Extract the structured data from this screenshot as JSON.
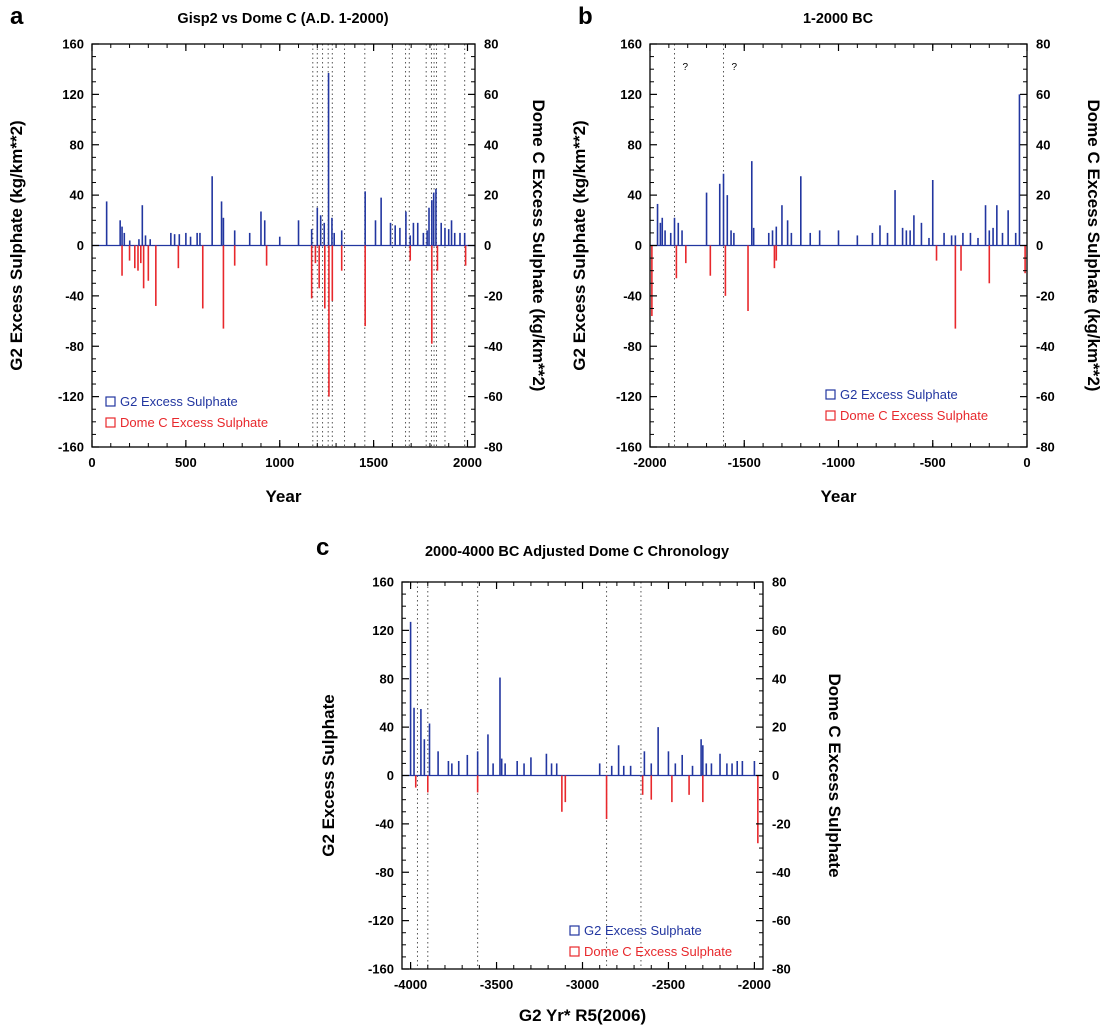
{
  "colors": {
    "g2": "#2236a0",
    "domec": "#e8282c",
    "axis": "#000000",
    "marker": "#555555"
  },
  "chart_data": [
    {
      "panel": "a",
      "type": "bar",
      "title": "Gisp2 vs Dome C (A.D. 1-2000)",
      "xlabel": "Year",
      "ylabel": "G2 Excess Sulphate (kg/km**2)",
      "ylabel_right": "Dome C Excess Sulphate (kg/km**2)",
      "xlim": [
        0,
        2040
      ],
      "xticks": [
        0,
        500,
        1000,
        1500,
        2000
      ],
      "ylim": [
        -160,
        160
      ],
      "yticks": [
        -160,
        -120,
        -80,
        -40,
        0,
        40,
        80,
        120,
        160
      ],
      "ylim_right": [
        -80,
        80
      ],
      "yticks_right": [
        -80,
        -60,
        -40,
        -20,
        0,
        20,
        40,
        60,
        80
      ],
      "legend": {
        "position": "bottom-left",
        "entries": [
          "G2 Excess Sulphate",
          "Dome C Excess Sulphate"
        ]
      },
      "marker_lines": [
        1176,
        1200,
        1228,
        1258,
        1280,
        1345,
        1453,
        1600,
        1670,
        1690,
        1780,
        1808,
        1822,
        1835,
        1880,
        1985
      ],
      "question_marks": [],
      "series": [
        {
          "name": "G2 Excess Sulphate",
          "x": [
            78,
            150,
            160,
            172,
            201,
            250,
            268,
            285,
            310,
            420,
            440,
            465,
            500,
            525,
            560,
            575,
            640,
            690,
            700,
            760,
            840,
            900,
            920,
            1000,
            1100,
            1170,
            1200,
            1218,
            1237,
            1260,
            1278,
            1290,
            1330,
            1455,
            1510,
            1540,
            1590,
            1615,
            1640,
            1672,
            1695,
            1712,
            1735,
            1765,
            1785,
            1795,
            1810,
            1820,
            1832,
            1860,
            1880,
            1900,
            1915,
            1932,
            1960,
            1985
          ],
          "values": [
            35,
            20,
            15,
            10,
            4,
            5,
            32,
            8,
            5,
            10,
            9,
            9,
            10,
            7,
            10,
            10,
            55,
            35,
            22,
            12,
            10,
            27,
            20,
            7,
            20,
            13,
            30,
            24,
            18,
            137,
            22,
            10,
            12,
            43,
            20,
            38,
            18,
            16,
            14,
            27,
            8,
            18,
            18,
            10,
            12,
            30,
            36,
            42,
            45,
            18,
            14,
            13,
            20,
            10,
            10,
            10
          ]
        },
        {
          "name": "Dome C Excess Sulphate",
          "x": [
            160,
            200,
            228,
            245,
            260,
            275,
            300,
            340,
            460,
            590,
            700,
            760,
            930,
            1170,
            1190,
            1210,
            1240,
            1262,
            1280,
            1330,
            1455,
            1695,
            1810,
            1840,
            1990
          ],
          "values": [
            -12,
            -6,
            -9,
            -10,
            -7,
            -17,
            -14,
            -24,
            -9,
            -25,
            -33,
            -8,
            -8,
            -21,
            -7,
            -17,
            -25,
            -60,
            -22,
            -10,
            -32,
            -6,
            -39,
            -10,
            -8
          ]
        }
      ]
    },
    {
      "panel": "b",
      "type": "bar",
      "title": "1-2000 BC",
      "xlabel": "Year",
      "ylabel": "G2 Excess Sulphate (kg/km**2)",
      "ylabel_right": "Dome C Excess Sulphate (kg/km**2)",
      "xlim": [
        -2000,
        0
      ],
      "xticks": [
        -2000,
        -1500,
        -1000,
        -500,
        0
      ],
      "ylim": [
        -160,
        160
      ],
      "yticks": [
        -160,
        -120,
        -80,
        -40,
        0,
        40,
        80,
        120,
        160
      ],
      "ylim_right": [
        -80,
        80
      ],
      "yticks_right": [
        -80,
        -60,
        -40,
        -20,
        0,
        20,
        40,
        60,
        80
      ],
      "legend": {
        "position": "bottom-right",
        "entries": [
          "G2 Excess Sulphate",
          "Dome C Excess Sulphate"
        ]
      },
      "marker_lines": [
        -1870,
        -1610
      ],
      "question_marks": [
        "?",
        "?"
      ],
      "series": [
        {
          "name": "G2 Excess Sulphate",
          "x": [
            -1960,
            -1945,
            -1935,
            -1920,
            -1890,
            -1870,
            -1850,
            -1830,
            -1700,
            -1630,
            -1610,
            -1590,
            -1570,
            -1555,
            -1460,
            -1450,
            -1370,
            -1350,
            -1330,
            -1300,
            -1270,
            -1250,
            -1200,
            -1150,
            -1100,
            -1000,
            -900,
            -820,
            -780,
            -740,
            -700,
            -660,
            -640,
            -620,
            -600,
            -560,
            -520,
            -500,
            -440,
            -400,
            -380,
            -340,
            -300,
            -260,
            -220,
            -200,
            -180,
            -160,
            -130,
            -100,
            -60,
            -40
          ],
          "values": [
            33,
            18,
            22,
            12,
            10,
            22,
            18,
            12,
            42,
            49,
            57,
            40,
            12,
            10,
            67,
            14,
            10,
            12,
            15,
            32,
            20,
            10,
            55,
            10,
            12,
            12,
            8,
            10,
            16,
            10,
            44,
            14,
            12,
            12,
            24,
            18,
            6,
            52,
            10,
            8,
            8,
            10,
            10,
            6,
            32,
            12,
            14,
            32,
            10,
            28,
            10,
            120
          ]
        },
        {
          "name": "Dome C Excess Sulphate",
          "x": [
            -1990,
            -1860,
            -1810,
            -1680,
            -1600,
            -1480,
            -1340,
            -1330,
            -480,
            -380,
            -350,
            -200,
            -10
          ],
          "values": [
            -28,
            -13,
            -7,
            -12,
            -20,
            -26,
            -9,
            -6,
            -6,
            -33,
            -10,
            -15,
            -11
          ]
        }
      ]
    },
    {
      "panel": "c",
      "type": "bar",
      "title": "2000-4000 BC Adjusted Dome C Chronology",
      "xlabel": "G2 Yr* R5(2006)",
      "ylabel": "G2 Excess Sulphate",
      "ylabel_right": "Dome C Excess Sulphate",
      "xlim": [
        -4050,
        -1950
      ],
      "xticks": [
        -4000,
        -3500,
        -3000,
        -2500,
        -2000
      ],
      "ylim": [
        -160,
        160
      ],
      "yticks": [
        -160,
        -120,
        -80,
        -40,
        0,
        40,
        80,
        120,
        160
      ],
      "ylim_right": [
        -80,
        80
      ],
      "yticks_right": [
        -80,
        -60,
        -40,
        -20,
        0,
        20,
        40,
        60,
        80
      ],
      "legend": {
        "position": "bottom-right",
        "entries": [
          "G2 Excess Sulphate",
          "Dome C Excess Sulphate"
        ]
      },
      "marker_lines": [
        -3960,
        -3900,
        -3610,
        -2860,
        -2660
      ],
      "question_marks": [],
      "series": [
        {
          "name": "G2 Excess Sulphate",
          "x": [
            -4000,
            -3980,
            -3940,
            -3920,
            -3890,
            -3840,
            -3780,
            -3760,
            -3720,
            -3670,
            -3610,
            -3550,
            -3520,
            -3480,
            -3470,
            -3450,
            -3380,
            -3340,
            -3300,
            -3210,
            -3180,
            -3150,
            -2900,
            -2830,
            -2790,
            -2760,
            -2720,
            -2640,
            -2600,
            -2560,
            -2500,
            -2460,
            -2420,
            -2360,
            -2310,
            -2300,
            -2280,
            -2250,
            -2200,
            -2160,
            -2130,
            -2100,
            -2070,
            -2000
          ],
          "values": [
            127,
            56,
            55,
            30,
            43,
            20,
            12,
            10,
            12,
            17,
            20,
            34,
            10,
            81,
            14,
            10,
            12,
            10,
            15,
            18,
            10,
            10,
            10,
            8,
            25,
            8,
            8,
            20,
            10,
            40,
            20,
            10,
            17,
            8,
            30,
            25,
            10,
            10,
            18,
            10,
            10,
            12,
            12,
            12
          ]
        },
        {
          "name": "Dome C Excess Sulphate",
          "x": [
            -3970,
            -3900,
            -3610,
            -3120,
            -3100,
            -2860,
            -2650,
            -2600,
            -2480,
            -2380,
            -2300,
            -1980
          ],
          "values": [
            -5,
            -7,
            -7,
            -15,
            -11,
            -18,
            -8,
            -10,
            -11,
            -8,
            -11,
            -28
          ]
        }
      ]
    }
  ]
}
